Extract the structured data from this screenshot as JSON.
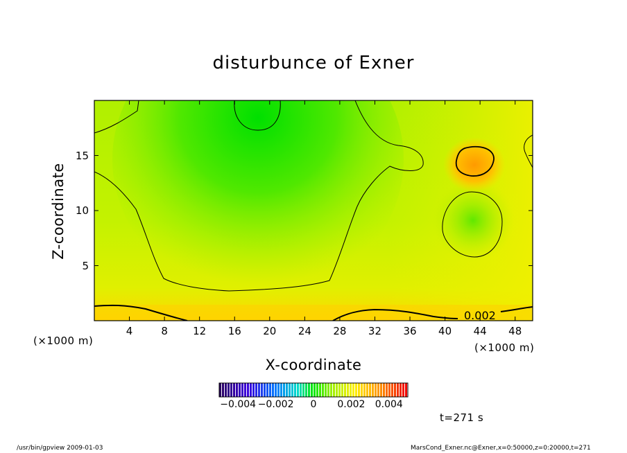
{
  "chart_data": {
    "type": "heatmap",
    "title": "disturbunce of Exner",
    "xlabel": "X-coordinate",
    "ylabel": "Z-coordinate",
    "x_unit": "(×1000 m)",
    "x_unit_right": "(×1000 m)",
    "xlim": [
      0,
      50
    ],
    "ylim": [
      0,
      20
    ],
    "x_ticks": [
      "4",
      "8",
      "12",
      "16",
      "20",
      "24",
      "28",
      "32",
      "36",
      "40",
      "44",
      "48"
    ],
    "x_tick_values": [
      4,
      8,
      12,
      16,
      20,
      24,
      28,
      32,
      36,
      40,
      44,
      48
    ],
    "y_ticks": [
      "5",
      "10",
      "15"
    ],
    "y_tick_values": [
      5,
      10,
      15
    ],
    "contour_label": "0.002",
    "colorbar": {
      "range": [
        -0.005,
        0.005
      ],
      "ticks": [
        "−0.004",
        "−0.002",
        "0",
        "0.002",
        "0.004"
      ],
      "tick_values": [
        -0.004,
        -0.002,
        0,
        0.002,
        0.004
      ]
    },
    "colors": {
      "field_low": "#00e000",
      "field_mid": "#aaf000",
      "field_high": "#ffd400",
      "extreme_high": "#ff9000"
    }
  },
  "time_label": "t=271 s",
  "footer": {
    "left": "/usr/bin/gpview   2009-01-03",
    "right": "MarsCond_Exner.nc@Exner,x=0:50000,z=0:20000,t=271"
  }
}
